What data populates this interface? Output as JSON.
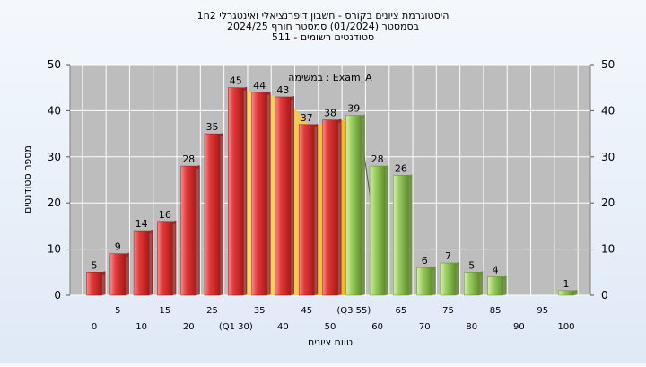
{
  "chart_data": {
    "type": "bar",
    "title_lines": [
      "היסטוגרמת ציונים בקורס - חשבון דיפרנציאלי ואינטגרלי 2ח1",
      "בסמסטר  (01/2024)  סמסטר חורף 2024/25",
      "סטודנטים רשומים - 511"
    ],
    "xlabel": "טווח ציונים",
    "ylabel": "מספר סטודנטים",
    "annotation": "במשימה : Exam_A",
    "ylim": [
      0,
      50
    ],
    "yticks": [
      "0",
      "10",
      "20",
      "30",
      "40",
      "50"
    ],
    "grid": true,
    "categories": [
      0,
      5,
      10,
      15,
      20,
      25,
      30,
      35,
      40,
      45,
      50,
      55,
      60,
      65,
      70,
      75,
      80,
      85,
      90,
      95,
      100
    ],
    "x_tick_labels": [
      "0",
      "5",
      "10",
      "15",
      "20",
      "25",
      "(Q1 30)",
      "35",
      "40",
      "45",
      "50",
      "(Q3 55)",
      "60",
      "65",
      "70",
      "75",
      "80",
      "85",
      "90",
      "95",
      "100"
    ],
    "values": [
      5,
      9,
      14,
      16,
      28,
      35,
      45,
      44,
      43,
      37,
      38,
      39,
      28,
      26,
      6,
      7,
      5,
      4,
      null,
      null,
      1
    ],
    "bar_colors": [
      "red",
      "red",
      "red",
      "red",
      "red",
      "red",
      "red",
      "red",
      "red",
      "red",
      "red",
      "green",
      "green",
      "green",
      "green",
      "green",
      "green",
      "green",
      null,
      null,
      "green"
    ],
    "colors": {
      "red": "#e23a3a",
      "red_dark": "#9c1414",
      "green": "#9ccf63",
      "green_dark": "#5e8f2a",
      "yellow": "#f0c23a",
      "plot_bg": "#bdbdbd",
      "grid": "#ffffff"
    }
  }
}
